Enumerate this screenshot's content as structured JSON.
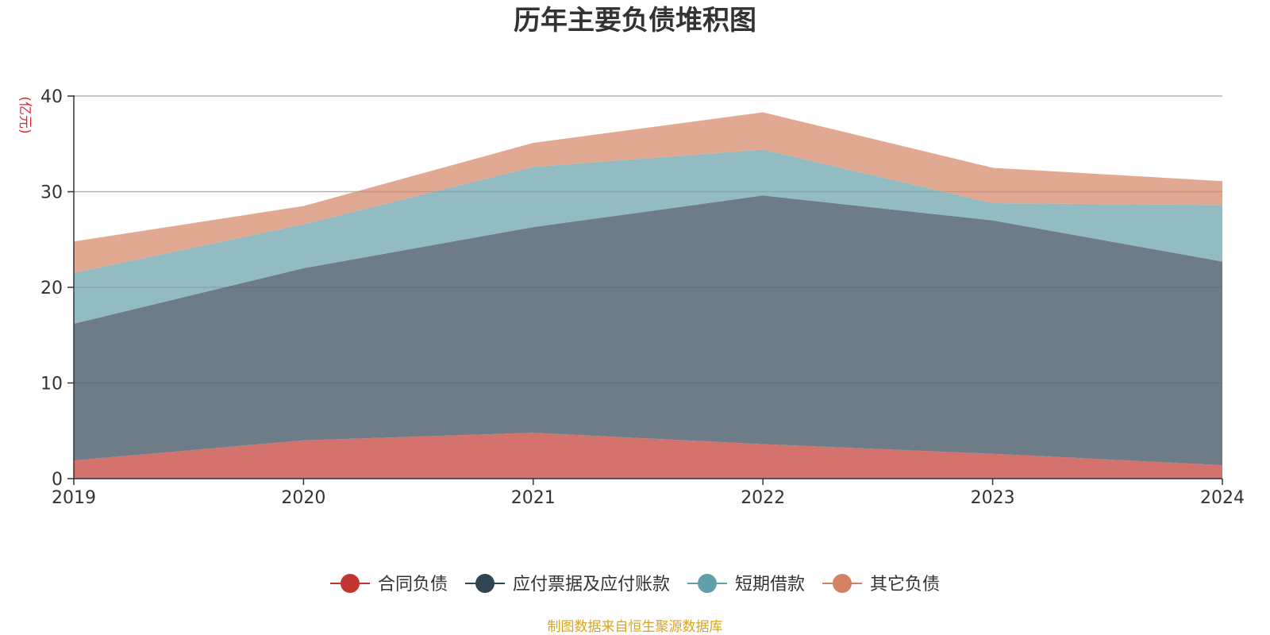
{
  "chart_data": {
    "type": "area",
    "stacked": true,
    "title": "历年主要负债堆积图",
    "ylabel": "(亿元)",
    "ylabel_color": "#e8262a",
    "xlabel": "",
    "categories": [
      "2019",
      "2020",
      "2021",
      "2022",
      "2023",
      "2024"
    ],
    "ylim": [
      0,
      40
    ],
    "yticks": [
      0,
      10,
      20,
      30,
      40
    ],
    "grid": true,
    "legend_position": "bottom-center",
    "series": [
      {
        "name": "合同负债",
        "color": "#c23531",
        "fill": "#d4726e",
        "values": [
          1.9,
          4.0,
          4.8,
          3.6,
          2.6,
          1.4
        ]
      },
      {
        "name": "应付票据及应付账款",
        "color": "#2f4554",
        "fill": "#6e7c87",
        "values": [
          14.3,
          18.0,
          21.5,
          26.0,
          24.4,
          21.3
        ]
      },
      {
        "name": "短期借款",
        "color": "#61a0a8",
        "fill": "#93bcc2",
        "values": [
          5.3,
          4.6,
          6.3,
          4.8,
          1.8,
          5.9
        ]
      },
      {
        "name": "其它负债",
        "color": "#d48265",
        "fill": "#e1a892",
        "values": [
          3.3,
          1.9,
          2.5,
          3.9,
          3.7,
          2.5
        ]
      }
    ]
  },
  "footer": {
    "source": "制图数据来自恒生聚源数据库",
    "source_color": "#d9a520"
  }
}
